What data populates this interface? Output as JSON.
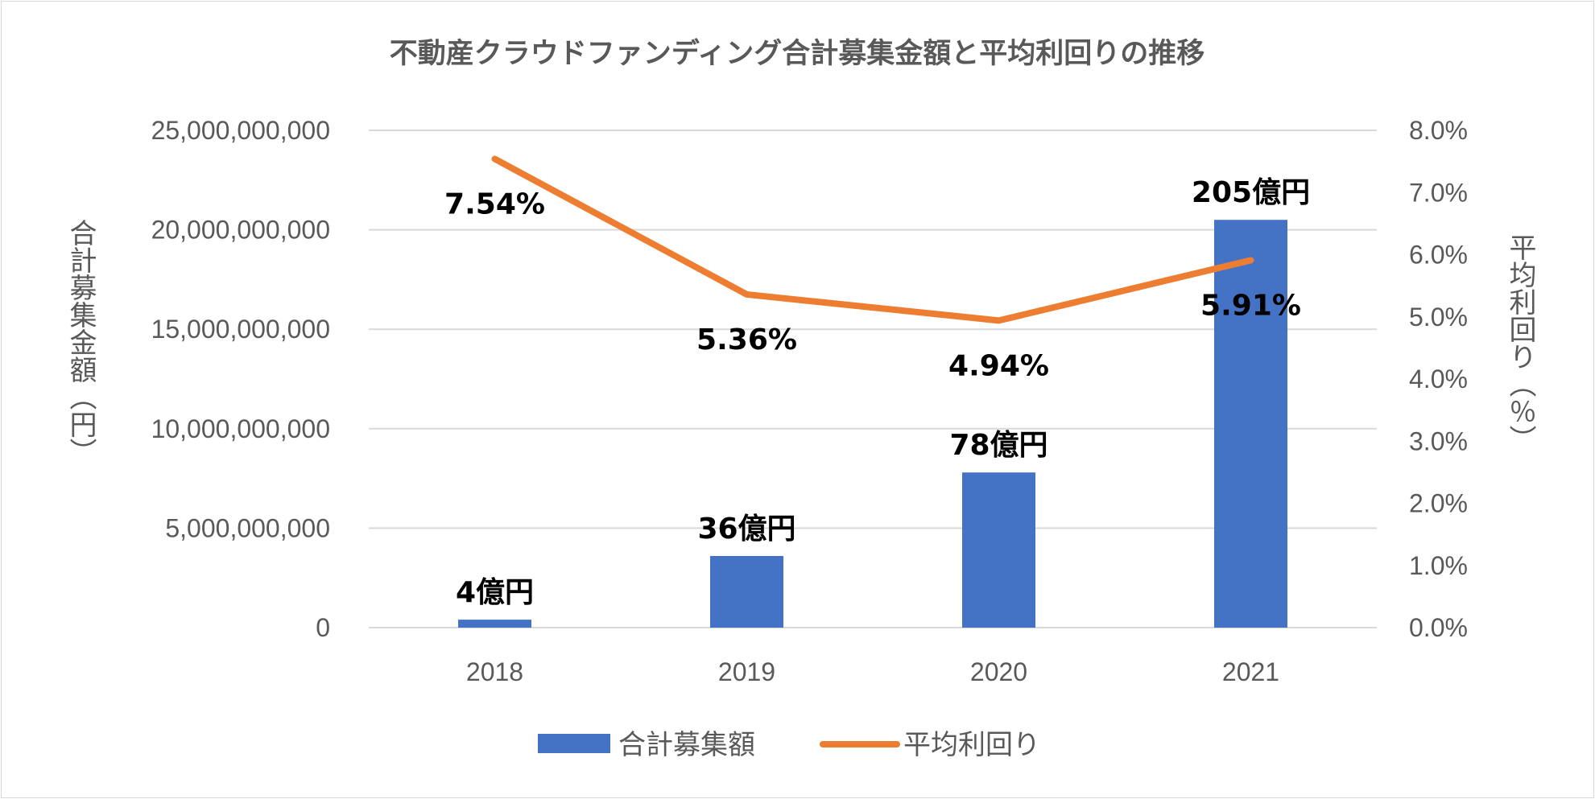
{
  "chart_data": {
    "type": "bar",
    "title": "不動産クラウドファンディング合計募集金額と平均利回りの推移",
    "categories": [
      "2018",
      "2019",
      "2020",
      "2021"
    ],
    "y_left_label": "合計募集金額（円）",
    "y_right_label": "平均利回り（％）",
    "y_left_ticks": [
      "0",
      "5,000,000,000",
      "10,000,000,000",
      "15,000,000,000",
      "20,000,000,000",
      "25,000,000,000"
    ],
    "y_right_ticks": [
      "0.0%",
      "1.0%",
      "2.0%",
      "3.0%",
      "4.0%",
      "5.0%",
      "6.0%",
      "7.0%",
      "8.0%"
    ],
    "y_left_range": [
      0,
      25000000000
    ],
    "y_right_range": [
      0,
      8
    ],
    "grid": true,
    "legend_position": "bottom",
    "series": [
      {
        "name": "合計募集額",
        "type": "bar",
        "axis": "left",
        "color": "#4472c4",
        "values": [
          400000000,
          3600000000,
          7800000000,
          20500000000
        ],
        "labels": [
          "4億円",
          "36億円",
          "78億円",
          "205億円"
        ]
      },
      {
        "name": "平均利回り",
        "type": "line",
        "axis": "right",
        "color": "#ed7d31",
        "values": [
          7.54,
          5.36,
          4.94,
          5.91
        ],
        "labels": [
          "7.54%",
          "5.36%",
          "4.94%",
          "5.91%"
        ]
      }
    ]
  }
}
